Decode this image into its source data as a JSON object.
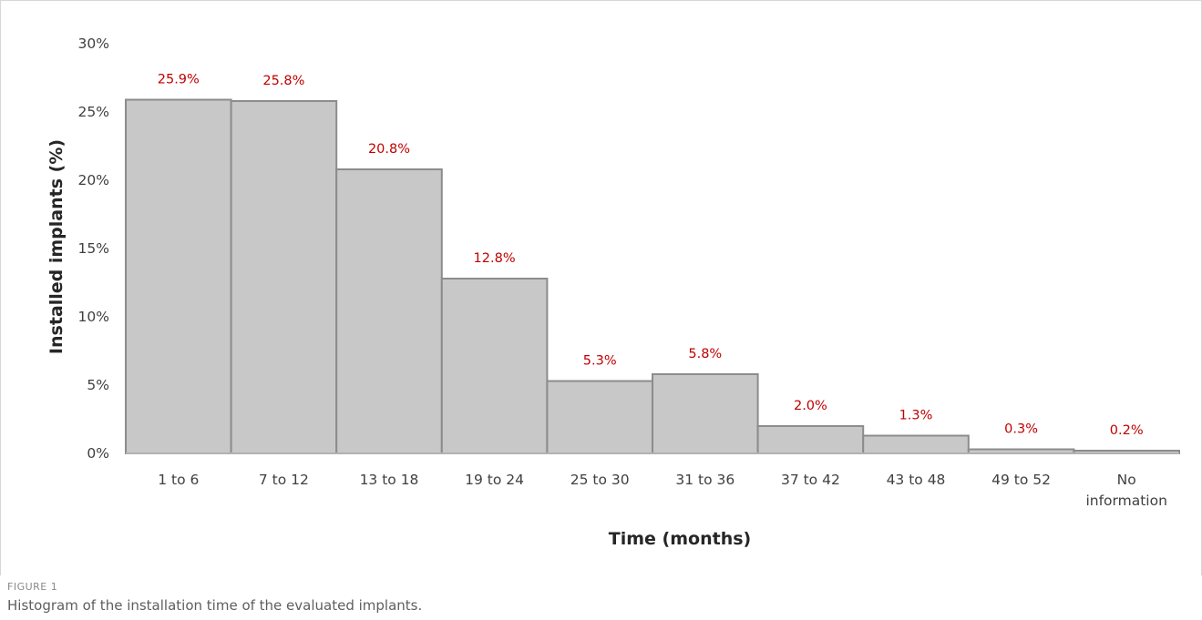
{
  "chart_data": {
    "type": "bar",
    "categories": [
      "1 to 6",
      "7 to 12",
      "13 to 18",
      "19 to 24",
      "25 to 30",
      "31 to 36",
      "37 to 42",
      "43 to 48",
      "49 to 52",
      "No information"
    ],
    "values": [
      25.9,
      25.8,
      20.8,
      12.8,
      5.3,
      5.8,
      2.0,
      1.3,
      0.3,
      0.2
    ],
    "data_labels": [
      "25.9%",
      "25.8%",
      "20.8%",
      "12.8%",
      "5.3%",
      "5.8%",
      "2.0%",
      "1.3%",
      "0.3%",
      "0.2%"
    ],
    "yticks": [
      0,
      5,
      10,
      15,
      20,
      25,
      30
    ],
    "ytick_labels": [
      "0%",
      "5%",
      "10%",
      "15%",
      "20%",
      "25%",
      "30%"
    ],
    "ylim": [
      0,
      30
    ],
    "xlabel": "Time (months)",
    "ylabel": "Installed implants (%)",
    "grid": false,
    "legend": "none",
    "colors": {
      "bar_fill": "#c8c8c8",
      "bar_stroke": "#8c8c8c",
      "data_label": "#c00000"
    }
  },
  "caption": {
    "label": "FIGURE 1",
    "text": "Histogram of the installation time of the evaluated implants."
  }
}
